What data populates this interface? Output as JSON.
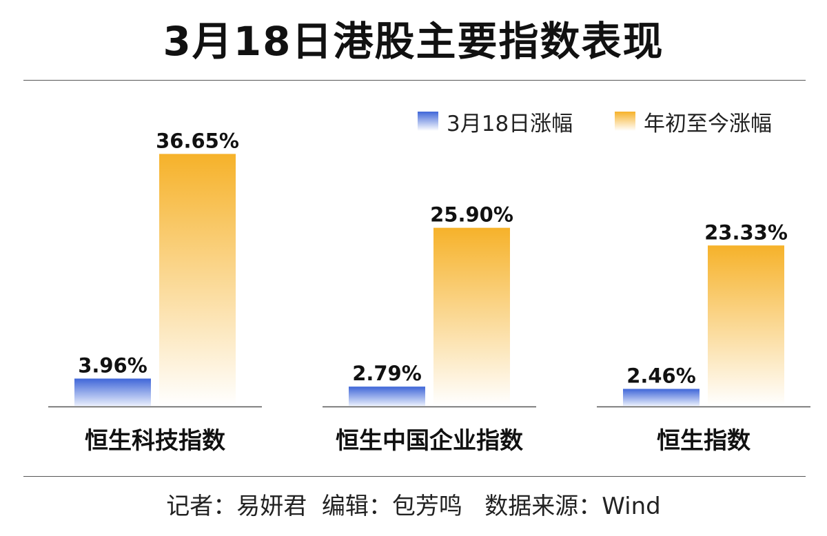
{
  "chart_data": {
    "type": "bar",
    "title": "3月18日港股主要指数表现",
    "categories": [
      "恒生科技指数",
      "恒生中国企业指数",
      "恒生指数"
    ],
    "series": [
      {
        "name": "3月18日涨幅",
        "values": [
          3.96,
          2.79,
          2.46
        ],
        "labels": [
          "3.96%",
          "2.79%",
          "2.46%"
        ],
        "color": "#3f66d8"
      },
      {
        "name": "年初至今涨幅",
        "values": [
          36.65,
          25.9,
          23.33
        ],
        "labels": [
          "36.65%",
          "25.90%",
          "23.33%"
        ],
        "color": "#f6b22a"
      }
    ],
    "ylim": [
      0,
      40
    ],
    "grid": false,
    "legend": "top-right",
    "xlabel": "",
    "ylabel": ""
  },
  "footer": "记者：易妍君  编辑：包芳鸣   数据来源：Wind"
}
